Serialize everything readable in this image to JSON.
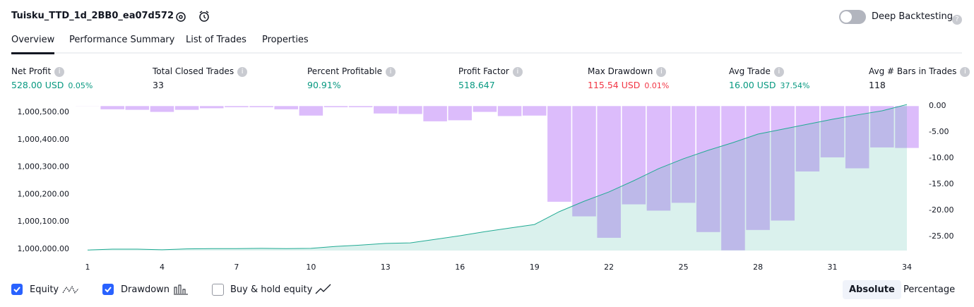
{
  "header": {
    "title": "Tuisku_TTD_1d_2BB0_ea07d572",
    "deep_backtesting": "Deep Backtesting",
    "deep_backtesting_on": false
  },
  "tabs": {
    "items": [
      "Overview",
      "Performance Summary",
      "List of Trades",
      "Properties"
    ],
    "active": 0
  },
  "metrics": [
    {
      "label": "Net Profit",
      "value": "528.00 USD",
      "percent": "0.05%",
      "color": "#089981"
    },
    {
      "label": "Total Closed Trades",
      "value": "33",
      "color": "#131722"
    },
    {
      "label": "Percent Profitable",
      "value": "90.91%",
      "color": "#089981"
    },
    {
      "label": "Profit Factor",
      "value": "518.647",
      "color": "#089981"
    },
    {
      "label": "Max Drawdown",
      "value": "115.54 USD",
      "percent": "0.01%",
      "color": "#f23645"
    },
    {
      "label": "Avg Trade",
      "value": "16.00 USD",
      "percent": "37.54%",
      "color": "#089981"
    },
    {
      "label": "Avg # Bars in Trades",
      "value": "118",
      "color": "#131722"
    }
  ],
  "chart_data": {
    "type": "line",
    "x": [
      1,
      2,
      3,
      4,
      5,
      6,
      7,
      8,
      9,
      10,
      11,
      12,
      13,
      14,
      15,
      16,
      17,
      18,
      19,
      20,
      21,
      22,
      23,
      24,
      25,
      26,
      27,
      28,
      29,
      30,
      31,
      32,
      33,
      34
    ],
    "xlim": [
      1,
      34
    ],
    "xticks": [
      1,
      4,
      7,
      10,
      13,
      16,
      19,
      22,
      25,
      28,
      31,
      34
    ],
    "ylim": [
      999995,
      1000523
    ],
    "yticks": [
      {
        "value": 1000000,
        "label": "1,000,000.00"
      },
      {
        "value": 1000100,
        "label": "1,000,100.00"
      },
      {
        "value": 1000200,
        "label": "1,000,200.00"
      },
      {
        "value": 1000300,
        "label": "1,000,300.00"
      },
      {
        "value": 1000400,
        "label": "1,000,400.00"
      },
      {
        "value": 1000500,
        "label": "1,000,500.00"
      }
    ],
    "y2lim": [
      -27.7,
      0
    ],
    "y2ticks": [
      {
        "value": 0,
        "label": "0.00"
      },
      {
        "value": -5,
        "label": "-5.00"
      },
      {
        "value": -10,
        "label": "-10.00"
      },
      {
        "value": -15,
        "label": "-15.00"
      },
      {
        "value": -20,
        "label": "-20.00"
      },
      {
        "value": -25,
        "label": "-25.00"
      }
    ],
    "series": [
      {
        "name": "Equity",
        "type": "line",
        "color": "#22ab94",
        "fill": "rgba(34,171,148,0.17)",
        "visible": true,
        "values": [
          999997,
          1000000,
          1000000,
          999998,
          1000001,
          1000002,
          1000002,
          1000003,
          1000002,
          1000003,
          1000010,
          1000015,
          1000021,
          1000023,
          1000036,
          1000049,
          1000064,
          1000077,
          1000090,
          1000137,
          1000175,
          1000209,
          1000250,
          1000294,
          1000330,
          1000361,
          1000389,
          1000420,
          1000438,
          1000456,
          1000474,
          1000490,
          1000505,
          1000528
        ]
      },
      {
        "name": "Drawdown",
        "type": "bar",
        "axis": "y2",
        "color": "#dcbcfb",
        "visible": true,
        "values": [
          -0.1,
          -0.7,
          -0.8,
          -1.2,
          -0.8,
          -0.5,
          -0.3,
          -0.3,
          -0.7,
          -1.9,
          -0.3,
          -0.3,
          -1.5,
          -1.6,
          -3.0,
          -2.8,
          -1.2,
          -2.0,
          -1.9,
          -18.4,
          -21.2,
          -25.3,
          -18.9,
          -20.1,
          -18.6,
          -24.2,
          -27.7,
          -23.8,
          -22.0,
          -12.6,
          -9.9,
          -12.0,
          -8.0,
          -8.1
        ]
      }
    ]
  },
  "options": {
    "buy_hold": "Buy & hold equity",
    "buy_hold_on": false,
    "modes": [
      "Absolute",
      "Percentage"
    ],
    "active_mode": 0
  }
}
